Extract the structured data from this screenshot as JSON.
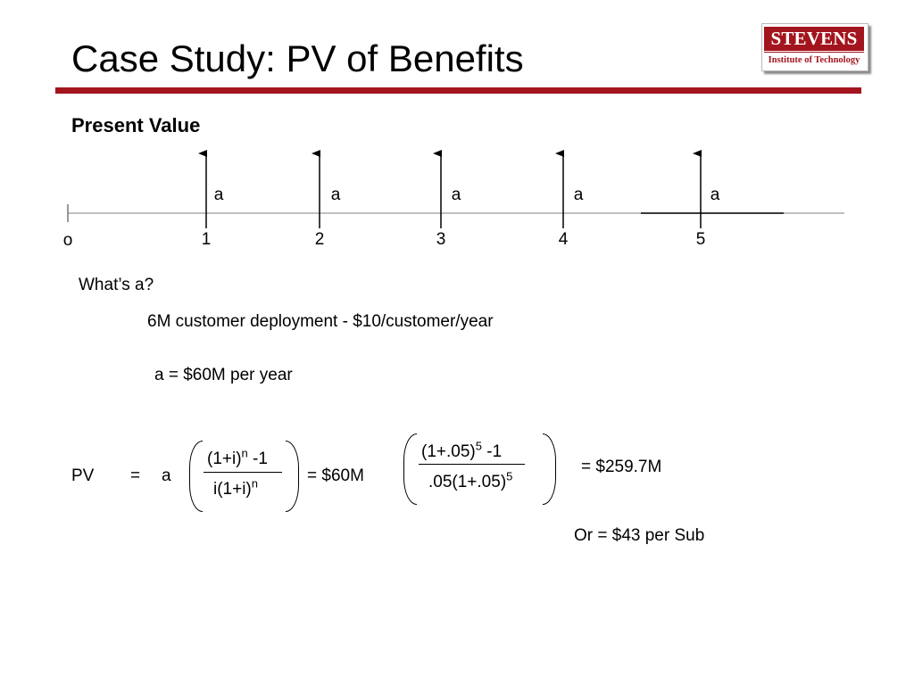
{
  "slide": {
    "title": "Case Study: PV of Benefits",
    "subtitle": "Present Value",
    "brand_color": "#a3151e"
  },
  "logo": {
    "name": "STEVENS",
    "subtitle": "Institute of Technology"
  },
  "timeline": {
    "origin_label": "o",
    "payment_label": "a",
    "period_labels": [
      "1",
      "2",
      "3",
      "4",
      "5"
    ]
  },
  "question": {
    "text": "What’s a?",
    "given": "6M customer deployment - $10/customer/year",
    "answer": "a = $60M per year"
  },
  "formula": {
    "lhs": "PV",
    "equals": "=",
    "factor": "a",
    "numerator": "(1+i)",
    "numerator_exp": "n",
    "numerator_tail": " -1",
    "denominator": "i(1+i)",
    "denominator_exp": "n",
    "substitution": "= $60M",
    "sub_numerator": "(1+.05)",
    "sub_numerator_exp": "5",
    "sub_numerator_tail": " -1",
    "sub_denominator": ".05(1+.05)",
    "sub_denominator_exp": "5",
    "result": "= $259.7M",
    "per_sub": "Or = $43 per Sub"
  }
}
